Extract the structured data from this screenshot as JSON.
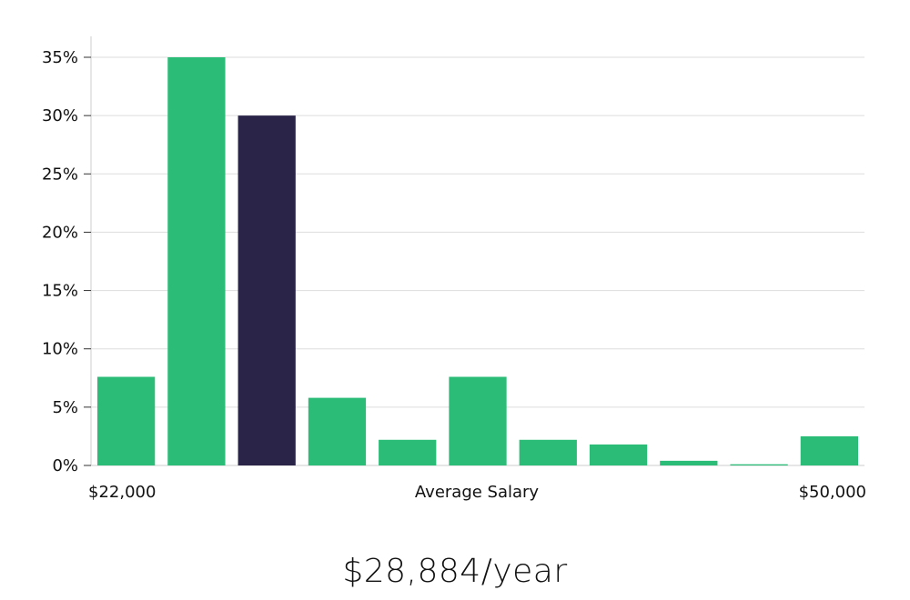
{
  "chart_data": {
    "type": "bar",
    "xlabel": "Average Salary",
    "x_range_labels": [
      "$22,000",
      "$50,000"
    ],
    "ylim": [
      0,
      35
    ],
    "yticks": [
      0,
      5,
      10,
      15,
      20,
      25,
      30,
      35
    ],
    "ytick_labels": [
      "0%",
      "5%",
      "10%",
      "15%",
      "20%",
      "25%",
      "30%",
      "35%"
    ],
    "values": [
      7.6,
      35,
      30,
      5.8,
      2.2,
      7.6,
      2.2,
      1.8,
      0.4,
      0.1,
      2.5
    ],
    "highlight_index": 2,
    "colors": {
      "bar": "#2bbd77",
      "highlight": "#2a2548",
      "grid": "#dddddd",
      "axis": "#cccccc"
    },
    "grid": true
  },
  "salary_display": "$28,884/year"
}
